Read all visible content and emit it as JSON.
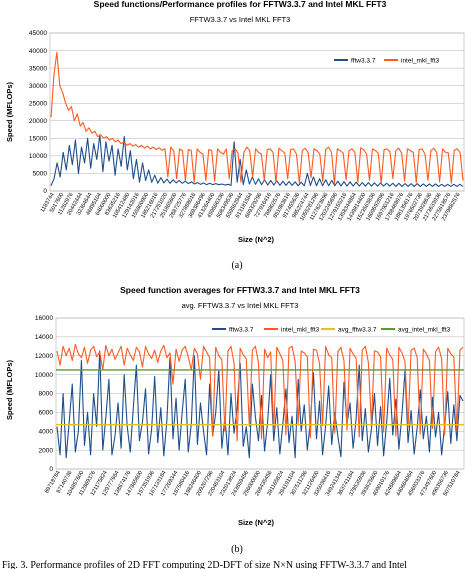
{
  "chart_data": [
    {
      "type": "line",
      "title": "Speed functions/Performance profiles for FFTW3.3.7 and Intel MKL FFT3",
      "subtitle": "FFTW3.3.7 vs Intel MKL FFT3",
      "xlabel": "Size (N^2)",
      "ylabel": "Speed (MFLOPs)",
      "ylim": [
        0,
        45000
      ],
      "yticks": [
        0,
        5000,
        10000,
        15000,
        20000,
        25000,
        30000,
        35000,
        40000,
        45000
      ],
      "grid": true,
      "legend": "top-right",
      "caption": "(a)",
      "x_tick_labels": [
        "1183744",
        "5017600",
        "11262976",
        "20442444",
        "32364644",
        "46895104",
        "64000000",
        "83635216",
        "105412480",
        "129142016",
        "155800900",
        "185216016",
        "217251020",
        "251865600",
        "288725776",
        "327888016",
        "369386496",
        "413264400",
        "459566336",
        "508349536",
        "559562944",
        "613181584",
        "669329296",
        "727916416",
        "788802576",
        "851983616",
        "917455636",
        "985224744",
        "1055281296",
        "1127623696",
        "1202245696",
        "1279155216",
        "1358344864",
        "1439814400",
        "1523563836",
        "1609592896",
        "1697901216",
        "1788488976",
        "1881356176",
        "1976502736",
        "2073928636",
        "2173633936",
        "2275618576",
        "2379882576"
      ],
      "series": [
        {
          "name": "fftw3.3.7",
          "color": "#1f4e8c",
          "values": [
            1500,
            3500,
            8000,
            4000,
            11000,
            6000,
            13000,
            7500,
            14500,
            5000,
            12500,
            8000,
            15000,
            6500,
            13500,
            9000,
            16000,
            5500,
            14000,
            8500,
            13000,
            4500,
            12000,
            7000,
            15500,
            6000,
            11500,
            3500,
            9000,
            2500,
            8000,
            3000,
            6000,
            2500,
            4500,
            2200,
            3800,
            2300,
            3400,
            2200,
            3200,
            2300,
            3000,
            2200,
            2800,
            2100,
            2600,
            2000,
            2400,
            1900,
            2300,
            1800,
            2200,
            1800,
            2100,
            1800,
            2000,
            1700,
            1900,
            1600,
            14000,
            2500,
            9000,
            1800,
            6000,
            2000,
            4000,
            1900,
            3500,
            1800,
            3200,
            1700,
            3000,
            1700,
            2900,
            1600,
            2800,
            1600,
            2700,
            1600,
            2600,
            1500,
            2500,
            1500,
            5000,
            1600,
            4000,
            1500,
            3500,
            1500,
            3200,
            1500,
            3000,
            1500,
            2800,
            1400,
            2700,
            1400,
            2600,
            1400,
            2500,
            1400,
            2400,
            1400,
            2400,
            1400,
            2300,
            1400,
            2300,
            1400,
            2200,
            1400,
            2200,
            1300,
            2200,
            1300,
            2100,
            1300,
            2100,
            1300,
            2100,
            1300,
            2000,
            1300,
            2000,
            1300,
            2000,
            1300,
            1900,
            1300,
            1900,
            1300,
            1900,
            1300,
            1900,
            1300
          ]
        },
        {
          "name": "intel_mkl_fft3",
          "color": "#ff5a1f",
          "values": [
            21000,
            33000,
            39500,
            30000,
            28000,
            25000,
            23000,
            24000,
            20000,
            22000,
            18500,
            19500,
            17000,
            18000,
            16500,
            17000,
            15500,
            16000,
            15000,
            15500,
            14500,
            15000,
            14000,
            14500,
            13500,
            14000,
            13000,
            13500,
            12800,
            13200,
            12500,
            13000,
            12200,
            12800,
            12000,
            12500,
            11800,
            12300,
            11600,
            12000,
            4000,
            12500,
            11500,
            3500,
            12000,
            11500,
            3000,
            11800,
            11500,
            2500,
            12000,
            11000,
            10500,
            3000,
            11800,
            11500,
            2800,
            12000,
            11000,
            10500,
            12000,
            3500,
            11500,
            12000,
            10800,
            2500,
            11000,
            12500,
            11500,
            4000,
            12000,
            11000,
            10500,
            3000,
            11800,
            12000,
            11000,
            2500,
            12200,
            11500,
            10800,
            3500,
            11800,
            12000,
            10500,
            2200,
            11500,
            12200,
            11000,
            3800,
            12000,
            11500,
            10500,
            2800,
            11800,
            12500,
            11000,
            2000,
            12000,
            11500,
            10800,
            3200,
            11500,
            12000,
            11000,
            2500,
            12300,
            11800,
            10500,
            3000,
            12000,
            11500,
            10800,
            2200,
            11800,
            12000,
            11200,
            3500,
            11500,
            12200,
            10800,
            2800,
            12000,
            11500,
            11000,
            2400,
            11800,
            12000,
            10500,
            3000,
            11500,
            12200,
            11000,
            2600,
            12000,
            11000,
            10800,
            2200,
            11600,
            12000,
            11000,
            3000
          ]
        }
      ]
    },
    {
      "type": "line",
      "title": "Speed function averages for FFTW3.3.7 and Intel MKL FFT3",
      "subtitle": "avg. FFTW3.3.7 vs Intel MKL FFT3",
      "xlabel": "Size (N^2)",
      "ylabel": "Speed (MFLOPs)",
      "ylim": [
        0,
        16000
      ],
      "yticks": [
        0,
        2000,
        4000,
        6000,
        8000,
        10000,
        12000,
        14000,
        16000
      ],
      "grid": true,
      "legend": "top",
      "caption": "(b)",
      "x_tick_labels": [
        "89718784",
        "97140736",
        "104857600",
        "112869376",
        "121175824",
        "129777664",
        "138674176",
        "147865600",
        "157351936",
        "167133184",
        "177209344",
        "187580416",
        "198246400",
        "209207296",
        "220463104",
        "232013824",
        "243859456",
        "256000000",
        "268435456",
        "281165824",
        "294191104",
        "307511296",
        "321126400",
        "335036416",
        "349241344",
        "363741184",
        "378535936",
        "393625600",
        "409010176",
        "424689664",
        "440664064",
        "456933376",
        "473497600",
        "490356736",
        "507510784"
      ],
      "series": [
        {
          "name": "fftw3.3.7",
          "color": "#1f4e8c",
          "values": [
            4500,
            1500,
            8000,
            1200,
            5000,
            9000,
            1800,
            4000,
            11500,
            2500,
            6000,
            1500,
            8000,
            4500,
            12500,
            2000,
            5500,
            9500,
            1500,
            3500,
            7000,
            2200,
            10000,
            4500,
            1800,
            6500,
            11000,
            3000,
            5000,
            8500,
            1600,
            4200,
            9800,
            2800,
            6500,
            1400,
            5200,
            11800,
            3200,
            7500,
            2000,
            6000,
            9500,
            1800,
            4800,
            12000,
            2600,
            7000,
            4000,
            1500,
            9000,
            3500,
            6000,
            10500,
            2200,
            5500,
            1500,
            8000,
            3800,
            6500,
            11200,
            2400,
            4500,
            1200,
            9000,
            5500,
            3000,
            7800,
            1900,
            5000,
            10000,
            3000,
            6500,
            1600,
            4800,
            8500,
            2800,
            5600,
            1200,
            9500,
            4000,
            6800,
            2000,
            5000,
            10200,
            3200,
            7200,
            1500,
            4600,
            8800,
            2600,
            6000,
            3500,
            1300,
            9200,
            4800,
            7000,
            2200,
            5400,
            11000,
            3000,
            6400,
            1800,
            4200,
            8000,
            2500,
            6600,
            1400,
            5000,
            9600,
            3600,
            7400,
            2100,
            5800,
            10400,
            2800,
            6200,
            1600,
            4400,
            8400,
            3200,
            5600,
            1800,
            7600,
            3400,
            6000,
            1500,
            4600,
            8200,
            2700,
            6800,
            3000,
            7800,
            7200
          ]
        },
        {
          "name": "intel_mkl_fft3",
          "color": "#ff5a1f",
          "values": [
            12500,
            11000,
            13000,
            12000,
            12800,
            11500,
            13200,
            12200,
            11800,
            12900,
            11200,
            12600,
            13000,
            11900,
            12400,
            10500,
            13100,
            12000,
            12700,
            11600,
            12300,
            13000,
            11000,
            12800,
            12100,
            11500,
            12900,
            12400,
            10800,
            13000,
            12200,
            11700,
            12600,
            11300,
            12500,
            13100,
            11800,
            12300,
            9000,
            12700,
            11400,
            12600,
            13000,
            11900,
            10500,
            12800,
            12200,
            9500,
            13000,
            12400,
            11800,
            3500,
            12900,
            12000,
            11600,
            4000,
            12500,
            13000,
            11200,
            3000,
            12800,
            12100,
            11700,
            4500,
            12600,
            13000,
            11300,
            3200,
            12700,
            11800,
            12400,
            4200,
            12900,
            12200,
            11500,
            3600,
            12800,
            13000,
            11400,
            4800,
            12500,
            12300,
            11900,
            3300,
            12700,
            12600,
            11200,
            4600,
            13000,
            12100,
            11800,
            3800,
            12400,
            12900,
            11500,
            4100,
            12800,
            12200,
            11700,
            3400,
            12600,
            13000,
            11300,
            4700,
            12500,
            12400,
            11900,
            3900,
            12800,
            12100,
            11600,
            3500,
            12900,
            12300,
            11400,
            4400,
            12600,
            12800,
            11800,
            3700,
            12700,
            12200,
            11500,
            4300,
            12400,
            12900,
            11700,
            3600,
            12800,
            12200,
            11900,
            4000,
            12600,
            12900
          ]
        },
        {
          "name": "avg_fftw3.3.7",
          "color": "#e6c11a",
          "constant": 4700
        },
        {
          "name": "avg_intel_mkl_fft3",
          "color": "#5b9a2d",
          "constant": 10500
        }
      ]
    }
  ],
  "footer_text": "Fig. 3.  Performance profiles of 2D FFT computing 2D-DFT of size N×N using FFTW-3.3.7 and Intel"
}
